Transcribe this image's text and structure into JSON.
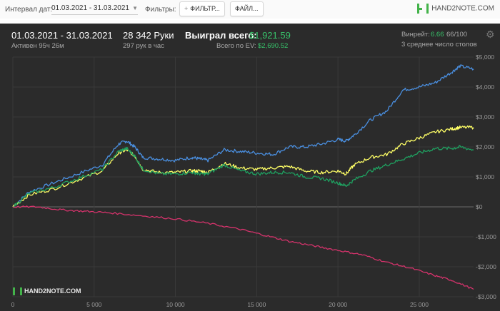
{
  "toolbar": {
    "date_label": "Интервал дат:",
    "date_value": "01.03.2021 - 31.03.2021",
    "filters_label": "Фильтры:",
    "filter_button": "ФИЛЬТР...",
    "file_button": "ФАЙЛ...",
    "logo_text": "HAND2NOTE.COM"
  },
  "summary": {
    "date_range": "01.03.2021 - 31.03.2021",
    "active": "Активен 95ч 26м",
    "hands": "28 342 Руки",
    "hands_per_hour": "297 рук в час",
    "won_label": "Выиграл всего:",
    "won_value": "$1,921.59",
    "ev_label": "Всего по EV:",
    "ev_value": "$2,690.52",
    "winrate_label": "Винрейт:",
    "winrate_value": "6.66",
    "winrate_hands": "66/100",
    "tables": "3 среднее число столов"
  },
  "watermark": "HAND2NOTE.COM",
  "chart_data": {
    "type": "line",
    "xlim": [
      0,
      28342
    ],
    "ylim": [
      -3000,
      5000
    ],
    "x_ticks": [
      0,
      5000,
      10000,
      15000,
      20000,
      25000
    ],
    "x_tick_labels": [
      "0",
      "5 000",
      "10 000",
      "15 000",
      "20 000",
      "25 000"
    ],
    "y_ticks": [
      5000,
      4000,
      3000,
      2000,
      1000,
      0,
      -1000,
      -2000,
      -3000
    ],
    "y_tick_labels": [
      "$5,000",
      "$4,000",
      "$3,000",
      "$2,000",
      "$1,000",
      "$0",
      "-$1,000",
      "-$2,000",
      "-$3,000"
    ],
    "grid": true,
    "colors": {
      "blue": "#4a8fe0",
      "yellow": "#ffff66",
      "green": "#1fa060",
      "red": "#d6336c"
    },
    "series": [
      {
        "color_key": "blue",
        "x": [
          0,
          1000,
          2500,
          4000,
          5500,
          6500,
          7000,
          7500,
          8000,
          9000,
          10000,
          11000,
          11500,
          12000,
          13000,
          14000,
          15000,
          16000,
          17000,
          18000,
          19000,
          20000,
          20500,
          21000,
          22000,
          23000,
          24000,
          25000,
          26000,
          27000,
          27500,
          28342
        ],
        "y": [
          0,
          500,
          800,
          1100,
          1400,
          2100,
          2200,
          2000,
          1650,
          1600,
          1550,
          1650,
          1600,
          1550,
          1900,
          1850,
          1800,
          1750,
          2000,
          2000,
          2100,
          2250,
          2200,
          2400,
          2900,
          3200,
          3900,
          4000,
          4150,
          4500,
          4700,
          4600
        ]
      },
      {
        "color_key": "yellow",
        "x": [
          0,
          1000,
          2500,
          4000,
          5500,
          6500,
          7000,
          7500,
          8000,
          9000,
          10000,
          11000,
          11500,
          12000,
          13000,
          14000,
          15000,
          16000,
          17000,
          18000,
          19000,
          20000,
          20500,
          21000,
          22000,
          23000,
          24000,
          25000,
          26000,
          27000,
          27500,
          28342
        ],
        "y": [
          0,
          400,
          600,
          900,
          1200,
          1800,
          1900,
          1700,
          1250,
          1150,
          1150,
          1200,
          1200,
          1150,
          1450,
          1300,
          1250,
          1300,
          1350,
          1200,
          1150,
          1200,
          1100,
          1400,
          1650,
          1750,
          2100,
          2300,
          2500,
          2600,
          2650,
          2650
        ]
      },
      {
        "color_key": "green",
        "x": [
          0,
          1000,
          2500,
          4000,
          5500,
          6500,
          7000,
          7500,
          8000,
          9000,
          10000,
          11000,
          11500,
          12000,
          13000,
          14000,
          15000,
          16000,
          17000,
          18000,
          19000,
          20000,
          20500,
          21000,
          22000,
          23000,
          24000,
          25000,
          26000,
          27000,
          27500,
          28342
        ],
        "y": [
          0,
          450,
          650,
          950,
          1250,
          1850,
          1950,
          1700,
          1250,
          1100,
          1100,
          1150,
          1100,
          1100,
          1400,
          1200,
          1100,
          1150,
          1150,
          1000,
          950,
          800,
          700,
          900,
          1200,
          1400,
          1600,
          1800,
          1950,
          1950,
          2000,
          1900
        ]
      },
      {
        "color_key": "red",
        "x": [
          0,
          1500,
          3000,
          4500,
          6000,
          8000,
          10000,
          12000,
          14000,
          15500,
          17000,
          18500,
          20000,
          21500,
          23000,
          24500,
          26000,
          27000,
          28342
        ],
        "y": [
          0,
          0,
          -100,
          -150,
          -200,
          -300,
          -400,
          -550,
          -750,
          -950,
          -1150,
          -1300,
          -1450,
          -1600,
          -1850,
          -2050,
          -2300,
          -2450,
          -2750
        ]
      }
    ]
  }
}
